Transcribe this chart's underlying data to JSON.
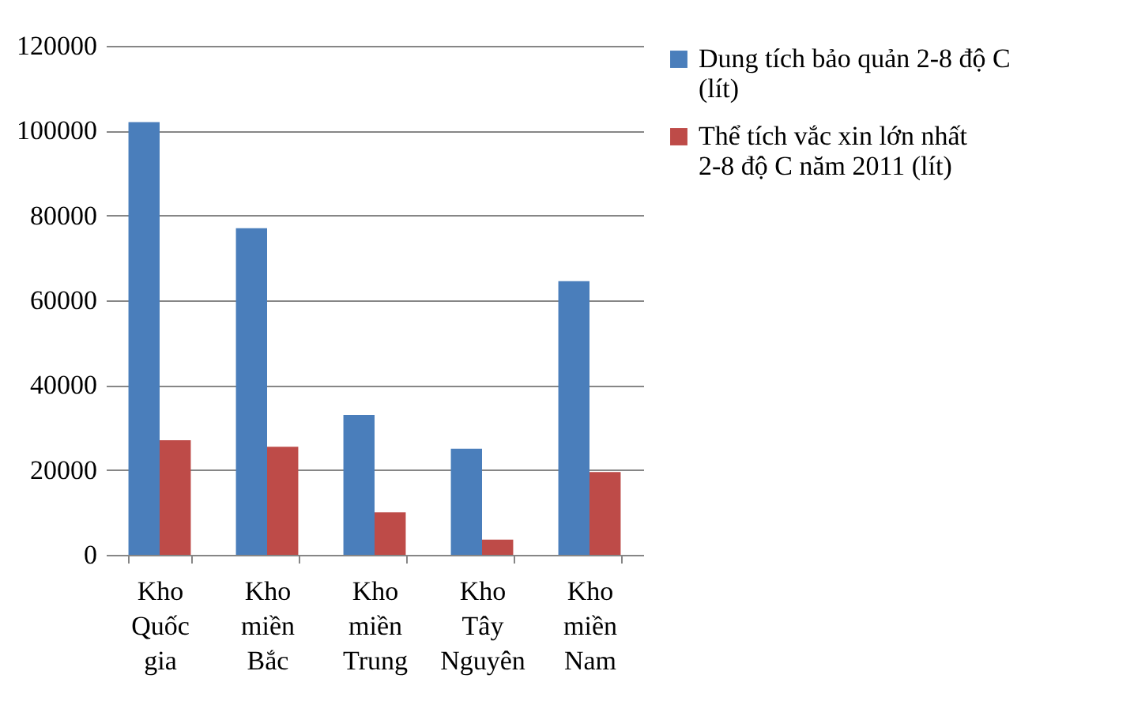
{
  "chart_data": {
    "type": "bar",
    "categories": [
      "Kho Quốc gia",
      "Kho miền Bắc",
      "Kho miền Trung",
      "Kho Tây Nguyên",
      "Kho miền Nam"
    ],
    "series": [
      {
        "name": "Dung tích bảo quản 2-8 độ C (lít)",
        "color": "#4a7ebb",
        "values": [
          102000,
          77000,
          33000,
          25000,
          64500
        ]
      },
      {
        "name": "Thể tích vắc xin lớn nhất 2-8 độ C năm 2011 (lít)",
        "color": "#be4b48",
        "values": [
          27000,
          25500,
          10000,
          3600,
          19500
        ]
      }
    ],
    "ylim": [
      0,
      120000
    ],
    "yticks": [
      0,
      20000,
      40000,
      60000,
      80000,
      100000,
      120000
    ],
    "grid": "y",
    "legend": "right"
  }
}
